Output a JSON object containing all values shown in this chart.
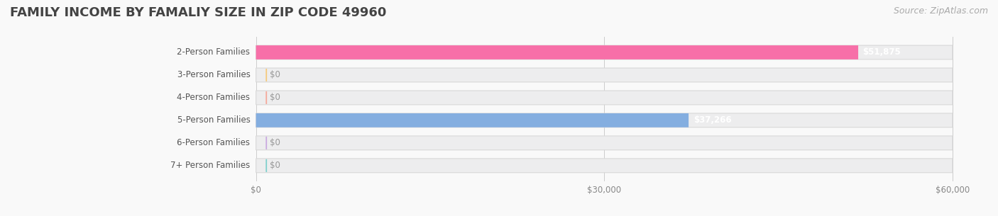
{
  "title": "FAMILY INCOME BY FAMALIY SIZE IN ZIP CODE 49960",
  "source": "Source: ZipAtlas.com",
  "categories": [
    "2-Person Families",
    "3-Person Families",
    "4-Person Families",
    "5-Person Families",
    "6-Person Families",
    "7+ Person Families"
  ],
  "values": [
    51875,
    0,
    0,
    37266,
    0,
    0
  ],
  "bar_colors": [
    "#f76fa8",
    "#f5c97a",
    "#f5a89a",
    "#84aee0",
    "#c9a8e0",
    "#7dcfcc"
  ],
  "bar_bg_color": "#ededee",
  "x_max": 60000,
  "x_ticks": [
    0,
    30000,
    60000
  ],
  "x_tick_labels": [
    "$0",
    "$30,000",
    "$60,000"
  ],
  "value_labels": [
    "$51,875",
    "$0",
    "$0",
    "$37,266",
    "$0",
    "$0"
  ],
  "bg_color": "#f9f9f9",
  "title_color": "#444444",
  "title_fontsize": 13,
  "label_fontsize": 8.5,
  "source_fontsize": 9,
  "bar_height": 0.62
}
